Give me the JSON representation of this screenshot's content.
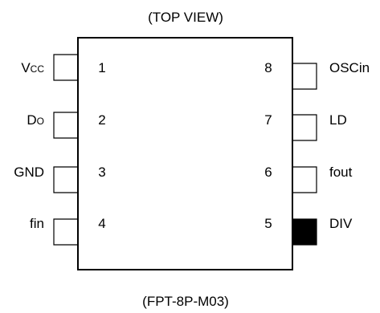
{
  "diagram": {
    "top_label": "(TOP VIEW)",
    "bottom_label": "(FPT-8P-M03)",
    "left_pins": [
      {
        "number": "1",
        "name_main": "V",
        "name_sub": "CC",
        "filled": false
      },
      {
        "number": "2",
        "name_main": "D",
        "name_sub": "O",
        "filled": false
      },
      {
        "number": "3",
        "name_main": "GND",
        "name_sub": "",
        "filled": false
      },
      {
        "number": "4",
        "name_main": "fin",
        "name_sub": "",
        "filled": false
      }
    ],
    "right_pins": [
      {
        "number": "8",
        "name_main": "OSCin",
        "name_sub": "",
        "filled": false
      },
      {
        "number": "7",
        "name_main": "LD",
        "name_sub": "",
        "filled": false
      },
      {
        "number": "6",
        "name_main": "fout",
        "name_sub": "",
        "filled": false
      },
      {
        "number": "5",
        "name_main": "DIV",
        "name_sub": "",
        "filled": true
      }
    ]
  }
}
